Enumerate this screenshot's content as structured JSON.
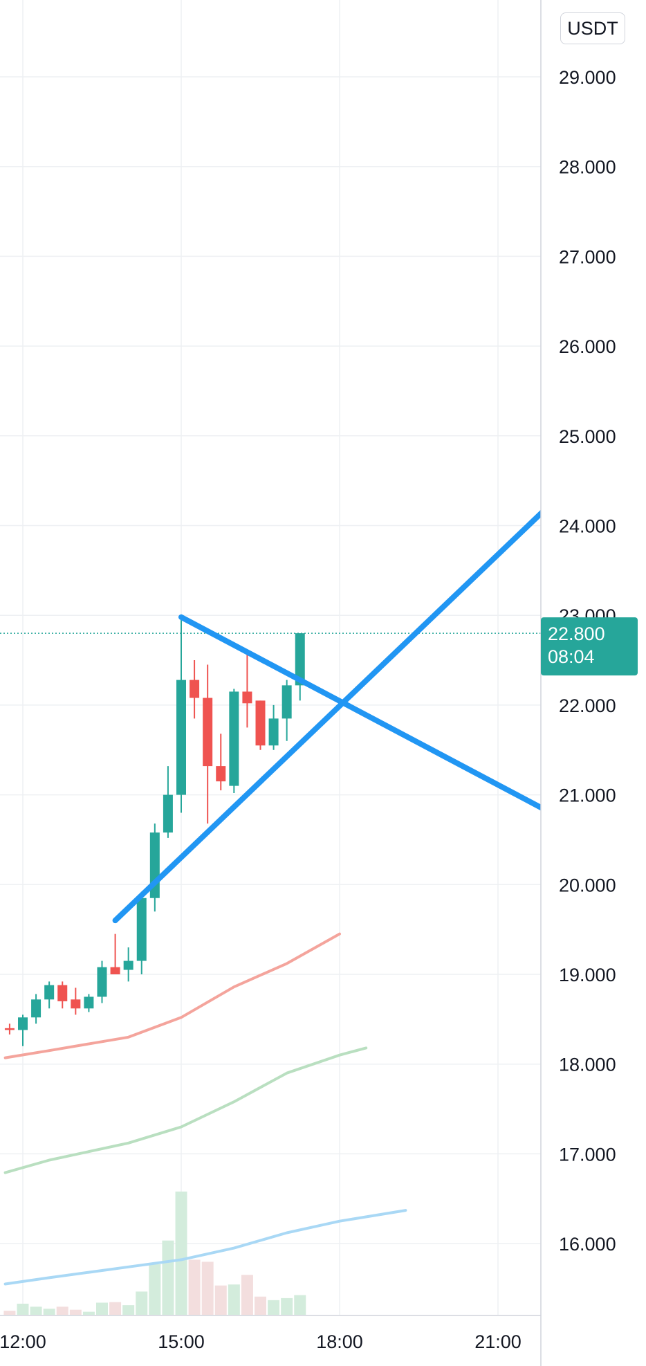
{
  "currency": {
    "label": "USDT"
  },
  "colors": {
    "up": "#26a69a",
    "down": "#ef5350",
    "trendline": "#2196f3",
    "grid": "#eef0f3",
    "ma_fast": "#f4a49c",
    "ma_mid": "#b9dfc0",
    "ma_slow": "#a9d8f5",
    "vol_up": "#d3ecdc",
    "vol_down": "#f3dede"
  },
  "last_price": {
    "value": "22.800",
    "countdown": "08:04"
  },
  "chart_data": {
    "type": "candlestick",
    "y_ticks": [
      "29.000",
      "28.000",
      "27.000",
      "26.000",
      "25.000",
      "24.000",
      "23.000",
      "22.000",
      "21.000",
      "20.000",
      "19.000",
      "18.000",
      "17.000",
      "16.000"
    ],
    "x_ticks": [
      "12:00",
      "15:00",
      "18:00",
      "21:00"
    ],
    "ylim": [
      15.2,
      29.5
    ],
    "xlim": [
      "11:40",
      "22:00"
    ],
    "grid": true,
    "candles": [
      {
        "t": "11:45",
        "o": 18.4,
        "h": 18.45,
        "l": 18.33,
        "c": 18.38
      },
      {
        "t": "12:00",
        "o": 18.38,
        "h": 18.55,
        "l": 18.2,
        "c": 18.52
      },
      {
        "t": "12:15",
        "o": 18.52,
        "h": 18.78,
        "l": 18.45,
        "c": 18.72
      },
      {
        "t": "12:30",
        "o": 18.72,
        "h": 18.92,
        "l": 18.62,
        "c": 18.88
      },
      {
        "t": "12:45",
        "o": 18.88,
        "h": 18.92,
        "l": 18.62,
        "c": 18.7
      },
      {
        "t": "13:00",
        "o": 18.72,
        "h": 18.85,
        "l": 18.55,
        "c": 18.62
      },
      {
        "t": "13:15",
        "o": 18.62,
        "h": 18.78,
        "l": 18.58,
        "c": 18.75
      },
      {
        "t": "13:30",
        "o": 18.75,
        "h": 19.15,
        "l": 18.68,
        "c": 19.08
      },
      {
        "t": "13:45",
        "o": 19.08,
        "h": 19.45,
        "l": 19.0,
        "c": 19.0
      },
      {
        "t": "14:00",
        "o": 19.05,
        "h": 19.3,
        "l": 18.92,
        "c": 19.15
      },
      {
        "t": "14:15",
        "o": 19.15,
        "h": 19.92,
        "l": 19.0,
        "c": 19.85
      },
      {
        "t": "14:30",
        "o": 19.85,
        "h": 20.68,
        "l": 19.7,
        "c": 20.58
      },
      {
        "t": "14:45",
        "o": 20.58,
        "h": 21.32,
        "l": 20.52,
        "c": 21.0
      },
      {
        "t": "15:00",
        "o": 21.0,
        "h": 22.98,
        "l": 20.8,
        "c": 22.28
      },
      {
        "t": "15:15",
        "o": 22.28,
        "h": 22.5,
        "l": 21.85,
        "c": 22.08
      },
      {
        "t": "15:30",
        "o": 22.08,
        "h": 22.45,
        "l": 20.68,
        "c": 21.32
      },
      {
        "t": "15:45",
        "o": 21.32,
        "h": 21.68,
        "l": 21.05,
        "c": 21.15
      },
      {
        "t": "16:00",
        "o": 21.1,
        "h": 22.18,
        "l": 21.02,
        "c": 22.15
      },
      {
        "t": "16:15",
        "o": 22.15,
        "h": 22.58,
        "l": 21.75,
        "c": 22.02
      },
      {
        "t": "16:30",
        "o": 22.05,
        "h": 22.05,
        "l": 21.5,
        "c": 21.55
      },
      {
        "t": "16:45",
        "o": 21.55,
        "h": 22.0,
        "l": 21.5,
        "c": 21.85
      },
      {
        "t": "17:00",
        "o": 21.85,
        "h": 22.28,
        "l": 21.6,
        "c": 22.22
      },
      {
        "t": "17:15",
        "o": 22.22,
        "h": 22.8,
        "l": 22.05,
        "c": 22.8
      }
    ],
    "volume_relative": [
      0.08,
      0.22,
      0.16,
      0.12,
      0.16,
      0.1,
      0.06,
      0.24,
      0.25,
      0.19,
      0.46,
      1.0,
      1.47,
      2.44,
      1.09,
      1.05,
      0.58,
      0.6,
      0.79,
      0.36,
      0.29,
      0.33,
      0.39
    ],
    "moving_averages": [
      {
        "color_key": "ma_fast",
        "points": [
          [
            "11:40",
            18.07
          ],
          [
            "12:30",
            18.15
          ],
          [
            "14:00",
            18.3
          ],
          [
            "15:00",
            18.52
          ],
          [
            "16:00",
            18.86
          ],
          [
            "17:00",
            19.12
          ],
          [
            "18:00",
            19.45
          ]
        ]
      },
      {
        "color_key": "ma_mid",
        "points": [
          [
            "11:40",
            16.79
          ],
          [
            "12:30",
            16.93
          ],
          [
            "14:00",
            17.12
          ],
          [
            "15:00",
            17.3
          ],
          [
            "16:00",
            17.58
          ],
          [
            "17:00",
            17.9
          ],
          [
            "18:00",
            18.1
          ],
          [
            "18:30",
            18.18
          ]
        ]
      },
      {
        "color_key": "ma_slow",
        "points": [
          [
            "11:40",
            15.55
          ],
          [
            "12:30",
            15.62
          ],
          [
            "14:00",
            15.74
          ],
          [
            "15:00",
            15.82
          ],
          [
            "16:00",
            15.95
          ],
          [
            "17:00",
            16.12
          ],
          [
            "18:00",
            16.25
          ],
          [
            "19:15",
            16.37
          ]
        ]
      }
    ],
    "trendlines": [
      {
        "from": [
          "13:45",
          19.6
        ],
        "to": [
          "22:00",
          24.24
        ]
      },
      {
        "from": [
          "15:00",
          22.98
        ],
        "to": [
          "22:00",
          20.8
        ]
      }
    ],
    "last_price_line": 22.8
  }
}
